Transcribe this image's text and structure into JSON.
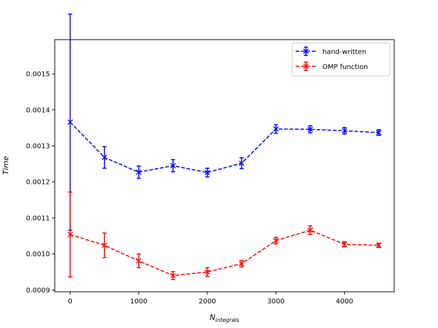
{
  "chart_data": {
    "type": "line",
    "xlabel": "N",
    "xlabel_sub": "integrals",
    "ylabel": "Time",
    "xlim": [
      -225,
      4725
    ],
    "ylim": [
      0.000895,
      0.001595
    ],
    "x_ticks": [
      0,
      1000,
      2000,
      3000,
      4000
    ],
    "x_tick_labels": [
      "0",
      "1000",
      "2000",
      "3000",
      "4000"
    ],
    "y_ticks": [
      0.0009,
      0.001,
      0.0011,
      0.0012,
      0.0013,
      0.0014,
      0.0015
    ],
    "y_tick_labels": [
      "0.0009",
      "0.0010",
      "0.0011",
      "0.0012",
      "0.0013",
      "0.0014",
      "0.0015"
    ],
    "grid": false,
    "legend_position": "upper-right",
    "x": [
      0,
      500,
      1000,
      1500,
      2000,
      2500,
      3000,
      3500,
      4000,
      4500
    ],
    "series": [
      {
        "name": "hand-written",
        "color": "#0000ff",
        "marker": "x",
        "linestyle": "dashed",
        "values": [
          0.001366,
          0.001268,
          0.001227,
          0.001245,
          0.001226,
          0.001252,
          0.001347,
          0.001346,
          0.001342,
          0.001337
        ],
        "errors": [
          0.0003,
          3e-05,
          1.7e-05,
          1.7e-05,
          1.2e-05,
          1.5e-05,
          1.2e-05,
          1e-05,
          9e-06,
          8e-06
        ]
      },
      {
        "name": "OMP function",
        "color": "#ff0000",
        "marker": "x",
        "linestyle": "dashed",
        "values": [
          0.001054,
          0.001024,
          0.000981,
          0.00094,
          0.00095,
          0.000973,
          0.001037,
          0.001066,
          0.001027,
          0.001024
        ],
        "errors": [
          0.000118,
          3.4e-05,
          1.9e-05,
          1.1e-05,
          1.2e-05,
          9e-06,
          9e-06,
          1.2e-05,
          7e-06,
          6e-06
        ]
      }
    ]
  }
}
